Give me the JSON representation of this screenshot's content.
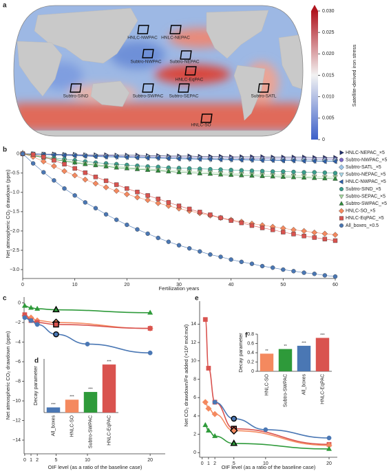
{
  "chart_data": [
    {
      "panel": "a",
      "type": "map",
      "regions": [
        "HNLC-NWPAC",
        "HNLC-NEPAC",
        "Subtro-NWPAC",
        "Subtro-NEPAC",
        "HNLC-EqPAC",
        "Subtro-SIND",
        "Subtro-SWPAC",
        "Subtro-SEPAC",
        "Subtro-SATL",
        "HNLC-SO"
      ],
      "colorbar": {
        "label": "Satellite-derived iron stress",
        "lim": [
          0,
          0.03
        ],
        "ticks": [
          0,
          0.005,
          {
            "value": 0.01,
            "label": "0.010"
          },
          0.015,
          {
            "value": 0.02,
            "label": "0.020"
          },
          0.025,
          {
            "value": 0.03,
            "label": "0.030"
          }
        ],
        "colors": [
          "#3b5fc9",
          "#f2f2f2",
          "#b0151f"
        ]
      }
    },
    {
      "panel": "b",
      "type": "line",
      "ylabel": "Net atmospheric CO₂ drawdown (ppm)",
      "xlabel": "Fertilization years",
      "x": [
        0,
        2,
        4,
        6,
        8,
        10,
        12,
        14,
        16,
        18,
        20,
        22,
        24,
        26,
        28,
        30,
        32,
        34,
        36,
        38,
        40,
        42,
        44,
        46,
        48,
        50,
        52,
        54,
        56,
        58,
        60
      ],
      "xlim": [
        0,
        60
      ],
      "xticks": [
        0,
        10,
        20,
        30,
        40,
        50,
        60
      ],
      "ylim": [
        -3.23,
        0.1
      ],
      "yticks": [
        0,
        {
          "value": -0.5,
          "label": "−0.5"
        },
        {
          "value": -1,
          "label": "−1.0"
        },
        {
          "value": -1.5,
          "label": "−1.5"
        },
        {
          "value": -2,
          "label": "−2.0"
        },
        {
          "value": -2.5,
          "label": "−2.5"
        },
        {
          "value": -3,
          "label": "−3.0"
        }
      ],
      "series": [
        {
          "name": "HNLC-NEPAC_×5",
          "color": "#1f2d6b",
          "marker": "triangle-right",
          "values": [
            0,
            0,
            -0.01,
            -0.01,
            -0.02,
            -0.02,
            -0.03,
            -0.03,
            -0.03,
            -0.04,
            -0.04,
            -0.04,
            -0.05,
            -0.05,
            -0.06,
            -0.06,
            -0.06,
            -0.07,
            -0.07,
            -0.07,
            -0.08,
            -0.08,
            -0.08,
            -0.08,
            -0.09,
            -0.09,
            -0.09,
            -0.09,
            -0.1,
            -0.1,
            -0.1
          ]
        },
        {
          "name": "Subtro-NWPAC_×5",
          "color": "#7b68c8",
          "marker": "circle",
          "values": [
            0,
            -0.01,
            -0.01,
            -0.02,
            -0.03,
            -0.03,
            -0.04,
            -0.05,
            -0.05,
            -0.06,
            -0.07,
            -0.07,
            -0.08,
            -0.08,
            -0.09,
            -0.09,
            -0.1,
            -0.1,
            -0.11,
            -0.11,
            -0.11,
            -0.12,
            -0.12,
            -0.12,
            -0.13,
            -0.13,
            -0.13,
            -0.13,
            -0.14,
            -0.14,
            -0.14
          ]
        },
        {
          "name": "Subtro-SATL_×5",
          "color": "#9cc3e6",
          "marker": "diamond",
          "values": [
            0,
            -0.01,
            -0.02,
            -0.03,
            -0.04,
            -0.04,
            -0.05,
            -0.06,
            -0.07,
            -0.07,
            -0.08,
            -0.09,
            -0.09,
            -0.1,
            -0.11,
            -0.11,
            -0.12,
            -0.12,
            -0.13,
            -0.13,
            -0.14,
            -0.14,
            -0.15,
            -0.15,
            -0.15,
            -0.16,
            -0.16,
            -0.16,
            -0.17,
            -0.17,
            -0.17
          ]
        },
        {
          "name": "Subtro-NEPAC_×5",
          "color": "#a8d8ea",
          "marker": "triangle-down",
          "values": [
            0,
            -0.01,
            -0.02,
            -0.03,
            -0.04,
            -0.05,
            -0.06,
            -0.07,
            -0.08,
            -0.09,
            -0.1,
            -0.1,
            -0.11,
            -0.12,
            -0.12,
            -0.13,
            -0.14,
            -0.14,
            -0.15,
            -0.15,
            -0.16,
            -0.16,
            -0.17,
            -0.17,
            -0.17,
            -0.18,
            -0.18,
            -0.18,
            -0.19,
            -0.19,
            -0.19
          ]
        },
        {
          "name": "HNLC-NWPAC_×5",
          "color": "#2b5da8",
          "marker": "triangle-left",
          "values": [
            0,
            -0.01,
            -0.02,
            -0.03,
            -0.04,
            -0.05,
            -0.06,
            -0.07,
            -0.08,
            -0.08,
            -0.09,
            -0.1,
            -0.11,
            -0.11,
            -0.12,
            -0.13,
            -0.13,
            -0.14,
            -0.14,
            -0.15,
            -0.15,
            -0.16,
            -0.16,
            -0.17,
            -0.17,
            -0.18,
            -0.18,
            -0.19,
            -0.19,
            -0.2,
            -0.2
          ]
        },
        {
          "name": "Subtro-SIND_×5",
          "color": "#3a9e8c",
          "marker": "circle",
          "values": [
            0,
            -0.03,
            -0.07,
            -0.11,
            -0.14,
            -0.17,
            -0.2,
            -0.23,
            -0.25,
            -0.27,
            -0.29,
            -0.31,
            -0.33,
            -0.34,
            -0.36,
            -0.37,
            -0.38,
            -0.39,
            -0.4,
            -0.41,
            -0.42,
            -0.43,
            -0.44,
            -0.45,
            -0.46,
            -0.46,
            -0.47,
            -0.48,
            -0.48,
            -0.49,
            -0.5
          ]
        },
        {
          "name": "Subtro-SEPAC_×5",
          "color": "#a6dba0",
          "marker": "triangle-down",
          "values": [
            0,
            -0.04,
            -0.09,
            -0.14,
            -0.18,
            -0.22,
            -0.25,
            -0.28,
            -0.31,
            -0.33,
            -0.35,
            -0.37,
            -0.39,
            -0.41,
            -0.43,
            -0.44,
            -0.46,
            -0.47,
            -0.48,
            -0.5,
            -0.51,
            -0.52,
            -0.53,
            -0.54,
            -0.55,
            -0.56,
            -0.57,
            -0.58,
            -0.59,
            -0.6,
            -0.6
          ]
        },
        {
          "name": "Subtro-SWPAC_×5",
          "color": "#2e8b3a",
          "marker": "triangle-up",
          "values": [
            0,
            -0.05,
            -0.1,
            -0.15,
            -0.19,
            -0.23,
            -0.27,
            -0.3,
            -0.33,
            -0.36,
            -0.38,
            -0.4,
            -0.42,
            -0.44,
            -0.46,
            -0.48,
            -0.49,
            -0.51,
            -0.52,
            -0.54,
            -0.55,
            -0.56,
            -0.57,
            -0.58,
            -0.59,
            -0.6,
            -0.61,
            -0.62,
            -0.63,
            -0.64,
            -0.65
          ]
        },
        {
          "name": "HNLC-SO_×5",
          "color": "#f4895f",
          "marker": "diamond",
          "values": [
            0,
            -0.08,
            -0.2,
            -0.32,
            -0.45,
            -0.56,
            -0.67,
            -0.77,
            -0.87,
            -0.96,
            -1.05,
            -1.13,
            -1.2,
            -1.28,
            -1.35,
            -1.42,
            -1.48,
            -1.54,
            -1.6,
            -1.66,
            -1.71,
            -1.76,
            -1.81,
            -1.85,
            -1.89,
            -1.93,
            -1.97,
            -2,
            -2.04,
            -2.07,
            -2.1
          ]
        },
        {
          "name": "HNLC-EqPAC_×5",
          "color": "#d9534f",
          "marker": "square",
          "values": [
            0,
            -0.02,
            -0.08,
            -0.17,
            -0.27,
            -0.38,
            -0.49,
            -0.6,
            -0.7,
            -0.8,
            -0.9,
            -0.99,
            -1.08,
            -1.17,
            -1.26,
            -1.35,
            -1.43,
            -1.51,
            -1.58,
            -1.66,
            -1.73,
            -1.79,
            -1.86,
            -1.92,
            -1.97,
            -2.03,
            -2.08,
            -2.13,
            -2.17,
            -2.21,
            -2.25
          ]
        },
        {
          "name": "All_boxes_×0.5",
          "color": "#4a77b4",
          "marker": "circle",
          "values": [
            0,
            -0.25,
            -0.48,
            -0.69,
            -0.9,
            -1.08,
            -1.26,
            -1.41,
            -1.57,
            -1.71,
            -1.84,
            -1.96,
            -2.07,
            -2.18,
            -2.28,
            -2.37,
            -2.45,
            -2.53,
            -2.61,
            -2.67,
            -2.74,
            -2.8,
            -2.85,
            -2.91,
            -2.95,
            -3,
            -3.04,
            -3.08,
            -3.11,
            -3.15,
            -3.18
          ]
        }
      ]
    },
    {
      "panel": "c",
      "type": "scatter",
      "ylabel": "Net atmospheric CO₂ drawdown (ppm)",
      "xlabel": "OIF level (as a ratio of the baseline case)",
      "xlim": [
        -0.1,
        22.4
      ],
      "xticks": [
        0,
        1,
        2,
        5,
        10,
        20
      ],
      "ylim": [
        -15.4,
        0.6
      ],
      "yticks": [
        0,
        {
          "value": -2,
          "label": "−2"
        },
        {
          "value": -4,
          "label": "−4"
        },
        {
          "value": -6,
          "label": "−6"
        },
        {
          "value": -8,
          "label": "−8"
        },
        {
          "value": -10,
          "label": "−10"
        },
        {
          "value": -12,
          "label": "−12"
        },
        {
          "value": -14,
          "label": "−14"
        }
      ],
      "highlight_x": 5,
      "series": [
        {
          "color": "#2e9a3a",
          "marker": "triangle-up",
          "x": [
            0,
            1,
            2,
            5,
            20
          ],
          "values": [
            -0.3,
            -0.5,
            -0.6,
            -0.7,
            -1.0
          ]
        },
        {
          "color": "#f4895f",
          "marker": "diamond",
          "x": [
            0,
            1,
            2,
            5,
            20
          ],
          "values": [
            -1.3,
            -1.5,
            -1.8,
            -2.0,
            -2.6
          ]
        },
        {
          "color": "#d9534f",
          "marker": "square",
          "x": [
            0,
            1,
            2,
            5,
            20
          ],
          "values": [
            -1.2,
            -1.8,
            -2.0,
            -2.2,
            -2.6
          ]
        },
        {
          "color": "#4a77b4",
          "marker": "circle",
          "x": [
            0,
            1,
            2,
            5,
            10,
            20
          ],
          "values": [
            -1.5,
            -1.8,
            -2.2,
            -3.2,
            -4.2,
            -5.1
          ]
        }
      ]
    },
    {
      "panel": "d",
      "type": "bar",
      "ylabel": "Decay parameter",
      "ylim": [
        0,
        1.25
      ],
      "categories": [
        "All_boxes",
        "HNLC-SO",
        "Subtro-SWPAC",
        "HNLC-EqPAC"
      ],
      "values": [
        0.12,
        0.3,
        0.48,
        1.12
      ],
      "colors": [
        "#4a77b4",
        "#f4895f",
        "#2e9a3a",
        "#d9534f"
      ],
      "annotations": [
        "***",
        "***",
        "***",
        "***"
      ]
    },
    {
      "panel": "e",
      "type": "scatter",
      "ylabel": "Net CO₂ drawdown/Fe added (×10³ mol:mol)",
      "xlabel": "OIF level (as a ratio of the baseline case)",
      "xlim": [
        -0.4,
        21.3
      ],
      "xticks": [
        0,
        1,
        2,
        5,
        10,
        20
      ],
      "ylim": [
        -0.5,
        16.5
      ],
      "yticks": [
        0,
        2,
        4,
        6,
        8,
        10,
        12,
        14
      ],
      "highlight_x": 5,
      "series": [
        {
          "color": "#d9534f",
          "marker": "square",
          "x": [
            0.5,
            1,
            2,
            5,
            20
          ],
          "values": [
            14.5,
            9.2,
            5.5,
            2.6,
            0.9
          ]
        },
        {
          "color": "#f4895f",
          "marker": "diamond",
          "x": [
            0.5,
            1,
            2,
            5,
            20
          ],
          "values": [
            5.5,
            4.8,
            4.2,
            2.4,
            0.8
          ]
        },
        {
          "color": "#2e9a3a",
          "marker": "triangle-up",
          "x": [
            0.5,
            1,
            2,
            5,
            20
          ],
          "values": [
            3.0,
            2.4,
            1.8,
            1.0,
            0.4
          ]
        },
        {
          "color": "#4a77b4",
          "marker": "circle",
          "x": [
            2,
            5,
            10,
            20
          ],
          "values": [
            5.5,
            3.7,
            2.5,
            1.6
          ]
        }
      ]
    },
    {
      "panel": "f",
      "type": "bar",
      "ylabel": "Decay parameter",
      "ylim": [
        0,
        0.8
      ],
      "yticks": [
        0,
        0.2,
        0.4,
        0.6,
        0.8
      ],
      "categories": [
        "HNLC-SO",
        "Subtro-SWPAC",
        "All_boxes",
        "HNLC-EqPAC"
      ],
      "values": [
        0.38,
        0.48,
        0.55,
        0.72
      ],
      "colors": [
        "#f4895f",
        "#2e9a3a",
        "#4a77b4",
        "#d9534f"
      ],
      "annotations": [
        "**",
        "**",
        "***",
        "***"
      ]
    }
  ]
}
